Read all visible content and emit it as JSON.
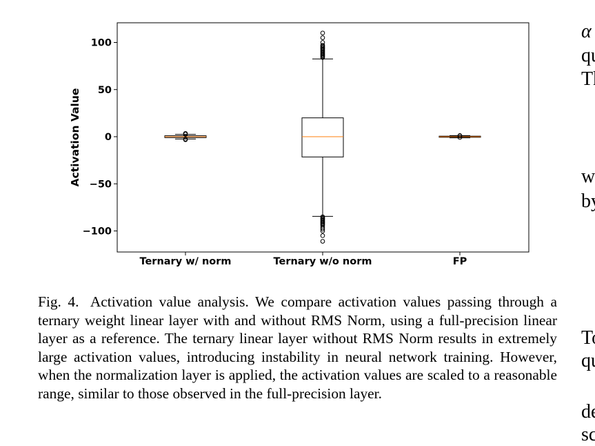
{
  "chart_data": {
    "type": "boxplot",
    "categories": [
      "Ternary w/ norm",
      "Ternary w/o norm",
      "FP"
    ],
    "ylabel": "Activation Value",
    "ylim": [
      -122,
      122
    ],
    "yticks": [
      100,
      50,
      0,
      -50,
      -100
    ],
    "ytick_labels": [
      "100",
      "50",
      "0",
      "−50",
      "−100"
    ],
    "grid": false,
    "series": [
      {
        "q1": -1.0,
        "median": 0.0,
        "q3": 1.0,
        "whisker_low": -2.5,
        "whisker_high": 2.5,
        "outliers": [
          2.5,
          3.5,
          -2.5,
          -3.2
        ]
      },
      {
        "q1": -21.5,
        "median": 0.0,
        "q3": 20.0,
        "whisker_low": -84.5,
        "whisker_high": 82.5,
        "outliers": [
          84,
          85,
          86,
          87,
          88,
          89,
          90,
          91,
          92,
          93,
          94,
          95,
          96,
          97,
          100,
          105,
          110,
          -85,
          -86,
          -87,
          -88,
          -89,
          -90,
          -91,
          -92,
          -93,
          -94,
          -96,
          -98,
          -100,
          -105,
          -111
        ]
      },
      {
        "q1": -0.6,
        "median": 0.0,
        "q3": 0.6,
        "whisker_low": -1.2,
        "whisker_high": 1.2,
        "outliers": [
          0.8,
          1.2,
          -0.8
        ]
      }
    ],
    "colors": {
      "median": "#ff7f0e",
      "box": "#000000"
    }
  },
  "caption": {
    "fig_number": "Fig. 4.",
    "text": "Activation value analysis. We compare activation values passing through a ternary weight linear layer with and without RMS Norm, using a full-precision linear layer as a reference. The ternary linear layer without RMS Norm results in extremely large activation values, introducing instability in neural network training. However, when the normalization layer is applied, the activation values are scaled to a reasonable range, similar to those observed in the full-precision layer."
  },
  "side_fragments": [
    "α",
    "qu",
    "Th",
    "w",
    "by",
    "To",
    "qu",
    "de",
    "sc"
  ]
}
